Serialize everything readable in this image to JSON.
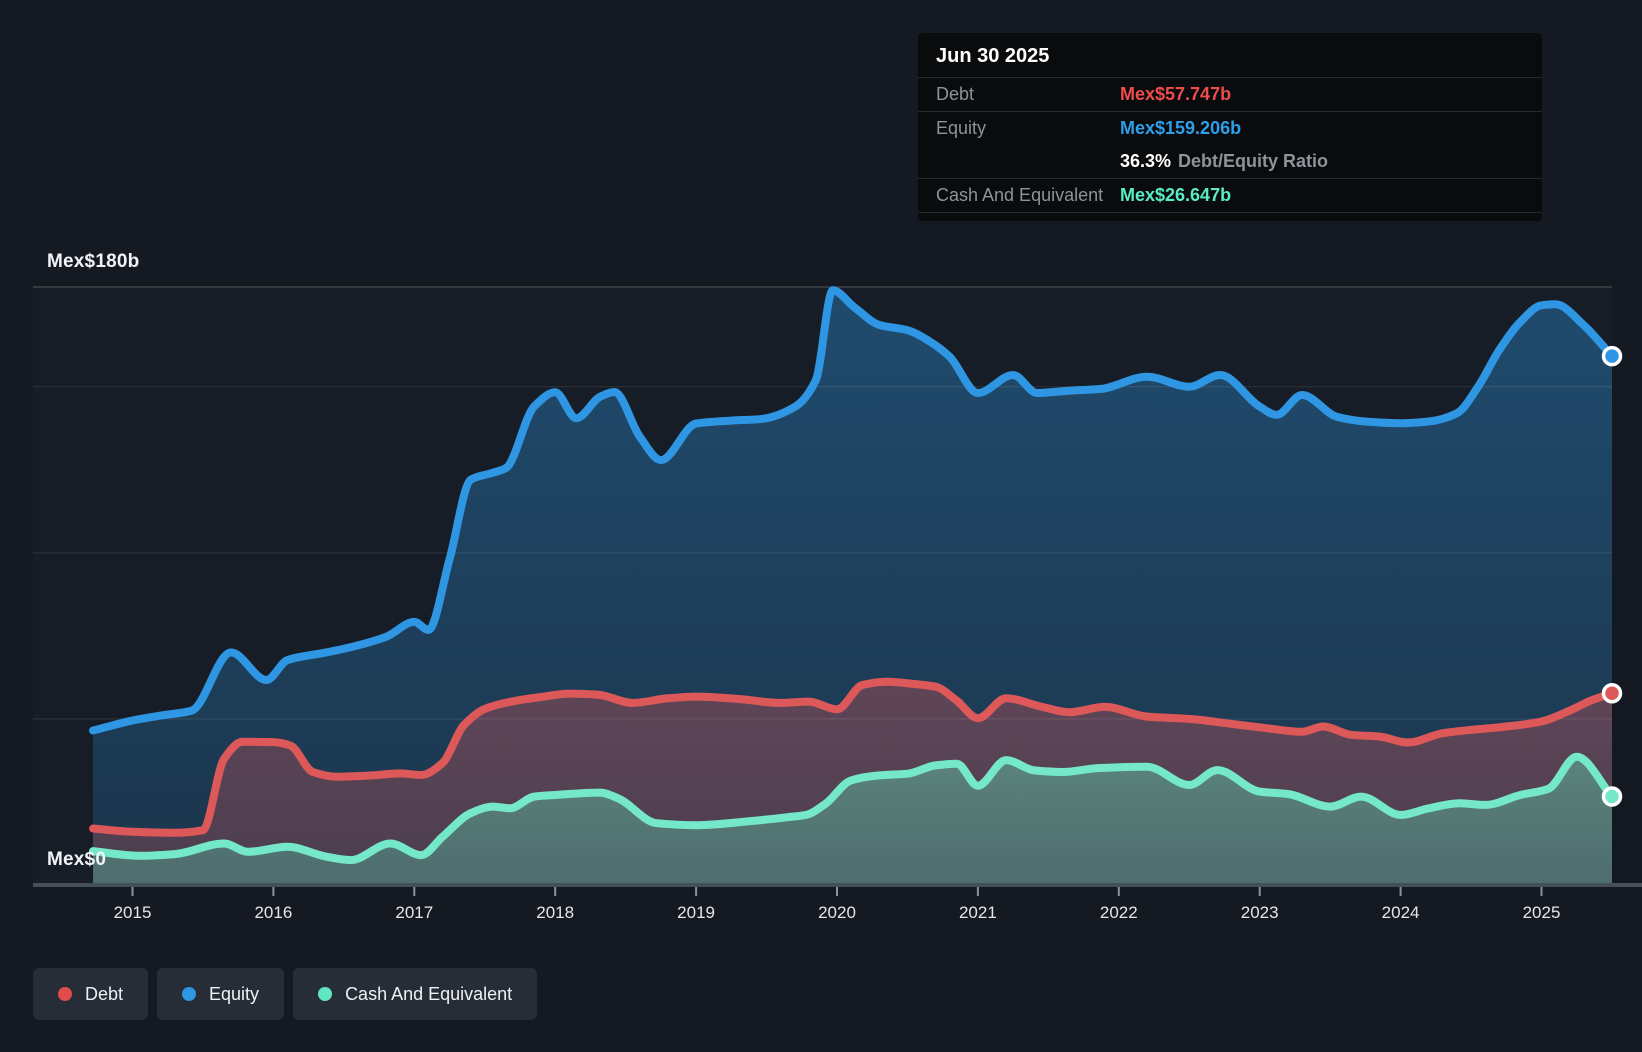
{
  "y_axis": {
    "top_label": "Mex$180b",
    "zero_label": "Mex$0"
  },
  "tooltip": {
    "date": "Jun 30 2025",
    "debt_label": "Debt",
    "debt_value": "Mex$57.747b",
    "debt_value_color": "#ef4c4c",
    "equity_label": "Equity",
    "equity_value": "Mex$159.206b",
    "equity_value_color": "#2e9fe8",
    "ratio_value": "36.3%",
    "ratio_label": "Debt/Equity Ratio",
    "cash_label": "Cash And Equivalent",
    "cash_value": "Mex$26.647b",
    "cash_value_color": "#5aedc5"
  },
  "legend": {
    "items": [
      {
        "label": "Debt",
        "color": "#e24c4c"
      },
      {
        "label": "Equity",
        "color": "#2e96e2"
      },
      {
        "label": "Cash And Equivalent",
        "color": "#62e6c1"
      }
    ]
  },
  "chart_data": {
    "type": "area",
    "title": "Debt to Equity history",
    "xlabel": "",
    "ylabel": "",
    "ylim": [
      0,
      180
    ],
    "xlim": [
      2014.7,
      2025.55
    ],
    "grid": true,
    "legend_position": "bottom-left",
    "x_ticks": [
      2015,
      2016,
      2017,
      2018,
      2019,
      2020,
      2021,
      2022,
      2023,
      2024,
      2025
    ],
    "gridline_values": [
      0,
      50,
      100,
      150,
      180
    ],
    "y_unit": "Mex$ billions",
    "series": [
      {
        "id": "equity",
        "name": "Equity",
        "color": "#2e96e2",
        "fill_top": "rgba(46,150,226,0.38)",
        "fill_bottom": "rgba(46,150,226,0.20)",
        "end_value": 159.206,
        "points": [
          [
            2014.72,
            46.5
          ],
          [
            2015.0,
            49.5
          ],
          [
            2015.2,
            51.0
          ],
          [
            2015.42,
            52.5
          ],
          [
            2015.7,
            70.0
          ],
          [
            2015.95,
            61.7
          ],
          [
            2016.1,
            67.7
          ],
          [
            2016.35,
            69.8
          ],
          [
            2016.55,
            71.6
          ],
          [
            2016.8,
            74.7
          ],
          [
            2017.0,
            79.2
          ],
          [
            2017.1,
            76.8
          ],
          [
            2017.25,
            98.0
          ],
          [
            2017.4,
            122.0
          ],
          [
            2017.55,
            124.0
          ],
          [
            2017.65,
            125.5
          ],
          [
            2017.85,
            144.0
          ],
          [
            2018.0,
            148.3
          ],
          [
            2018.15,
            140.5
          ],
          [
            2018.32,
            147.0
          ],
          [
            2018.42,
            148.4
          ],
          [
            2018.6,
            135.0
          ],
          [
            2018.75,
            127.9
          ],
          [
            2019.0,
            138.9
          ],
          [
            2019.25,
            139.8
          ],
          [
            2019.45,
            140.2
          ],
          [
            2019.7,
            143.9
          ],
          [
            2019.85,
            152.0
          ],
          [
            2019.97,
            179.0
          ],
          [
            2020.12,
            174.0
          ],
          [
            2020.3,
            168.6
          ],
          [
            2020.5,
            167.0
          ],
          [
            2020.68,
            163.0
          ],
          [
            2020.8,
            159.0
          ],
          [
            2021.0,
            148.1
          ],
          [
            2021.25,
            153.5
          ],
          [
            2021.42,
            148.1
          ],
          [
            2021.65,
            148.8
          ],
          [
            2021.87,
            149.3
          ],
          [
            2022.2,
            153.0
          ],
          [
            2022.5,
            150.0
          ],
          [
            2022.72,
            153.5
          ],
          [
            2023.0,
            144.0
          ],
          [
            2023.12,
            141.5
          ],
          [
            2023.3,
            147.5
          ],
          [
            2023.55,
            140.9
          ],
          [
            2023.75,
            139.5
          ],
          [
            2024.0,
            139.0
          ],
          [
            2024.2,
            139.5
          ],
          [
            2024.4,
            142.0
          ],
          [
            2024.55,
            150.0
          ],
          [
            2024.7,
            161.0
          ],
          [
            2024.85,
            169.5
          ],
          [
            2025.0,
            174.5
          ],
          [
            2025.1,
            174.8
          ],
          [
            2025.3,
            168.5
          ],
          [
            2025.5,
            159.206
          ]
        ]
      },
      {
        "id": "debt",
        "name": "Debt",
        "color": "#dd5858",
        "fill_top": "rgba(224,87,87,0.34)",
        "fill_bottom": "rgba(224,87,87,0.24)",
        "end_value": 57.747,
        "points": [
          [
            2014.72,
            17.0
          ],
          [
            2015.0,
            16.0
          ],
          [
            2015.3,
            15.7
          ],
          [
            2015.5,
            16.5
          ],
          [
            2015.65,
            38.0
          ],
          [
            2015.78,
            43.1
          ],
          [
            2016.0,
            43.0
          ],
          [
            2016.12,
            42.0
          ],
          [
            2016.28,
            34.0
          ],
          [
            2016.45,
            32.6
          ],
          [
            2016.7,
            33.0
          ],
          [
            2016.9,
            33.6
          ],
          [
            2017.05,
            33.1
          ],
          [
            2017.2,
            36.7
          ],
          [
            2017.35,
            48.0
          ],
          [
            2017.5,
            53.0
          ],
          [
            2017.7,
            55.3
          ],
          [
            2017.9,
            56.6
          ],
          [
            2018.1,
            57.6
          ],
          [
            2018.3,
            57.3
          ],
          [
            2018.55,
            54.8
          ],
          [
            2018.8,
            56.2
          ],
          [
            2019.0,
            56.7
          ],
          [
            2019.3,
            56.0
          ],
          [
            2019.6,
            54.8
          ],
          [
            2019.8,
            55.2
          ],
          [
            2020.0,
            52.9
          ],
          [
            2020.18,
            60.2
          ],
          [
            2020.35,
            61.2
          ],
          [
            2020.55,
            60.5
          ],
          [
            2020.7,
            59.7
          ],
          [
            2020.85,
            55.5
          ],
          [
            2021.0,
            50.2
          ],
          [
            2021.2,
            56.2
          ],
          [
            2021.45,
            53.7
          ],
          [
            2021.65,
            52.0
          ],
          [
            2021.9,
            53.6
          ],
          [
            2022.2,
            50.7
          ],
          [
            2022.5,
            50.0
          ],
          [
            2022.8,
            48.5
          ],
          [
            2023.05,
            47.2
          ],
          [
            2023.3,
            46.1
          ],
          [
            2023.45,
            47.7
          ],
          [
            2023.65,
            45.2
          ],
          [
            2023.85,
            44.7
          ],
          [
            2024.05,
            42.9
          ],
          [
            2024.3,
            45.7
          ],
          [
            2024.5,
            46.7
          ],
          [
            2024.75,
            47.7
          ],
          [
            2025.0,
            49.2
          ],
          [
            2025.2,
            52.5
          ],
          [
            2025.35,
            55.5
          ],
          [
            2025.5,
            57.747
          ]
        ]
      },
      {
        "id": "cash",
        "name": "Cash And Equivalent",
        "color": "#74e8c9",
        "fill_top": "rgba(94,190,160,0.52)",
        "fill_bottom": "rgba(80,160,145,0.48)",
        "end_value": 26.647,
        "points": [
          [
            2014.72,
            10.2
          ],
          [
            2015.05,
            8.8
          ],
          [
            2015.3,
            9.3
          ],
          [
            2015.65,
            12.5
          ],
          [
            2015.82,
            10.0
          ],
          [
            2016.1,
            11.5
          ],
          [
            2016.38,
            8.5
          ],
          [
            2016.55,
            7.5
          ],
          [
            2016.83,
            12.5
          ],
          [
            2017.05,
            9.0
          ],
          [
            2017.2,
            14.5
          ],
          [
            2017.4,
            21.6
          ],
          [
            2017.56,
            23.6
          ],
          [
            2017.68,
            23.1
          ],
          [
            2017.85,
            26.6
          ],
          [
            2018.0,
            27.1
          ],
          [
            2018.32,
            27.8
          ],
          [
            2018.45,
            26.0
          ],
          [
            2018.72,
            18.6
          ],
          [
            2019.0,
            18.0
          ],
          [
            2019.38,
            19.2
          ],
          [
            2019.65,
            20.4
          ],
          [
            2019.78,
            21.1
          ],
          [
            2019.92,
            24.5
          ],
          [
            2020.1,
            31.5
          ],
          [
            2020.3,
            33.0
          ],
          [
            2020.5,
            33.5
          ],
          [
            2020.7,
            36.0
          ],
          [
            2020.85,
            36.5
          ],
          [
            2021.0,
            29.9
          ],
          [
            2021.2,
            37.6
          ],
          [
            2021.4,
            34.5
          ],
          [
            2021.6,
            34.0
          ],
          [
            2021.85,
            35.2
          ],
          [
            2022.2,
            35.6
          ],
          [
            2022.5,
            30.1
          ],
          [
            2022.7,
            34.6
          ],
          [
            2023.0,
            28.1
          ],
          [
            2023.2,
            27.4
          ],
          [
            2023.5,
            23.6
          ],
          [
            2023.72,
            26.6
          ],
          [
            2024.0,
            21.1
          ],
          [
            2024.2,
            23.1
          ],
          [
            2024.42,
            24.6
          ],
          [
            2024.6,
            24.1
          ],
          [
            2024.85,
            27.1
          ],
          [
            2025.05,
            29.0
          ],
          [
            2025.25,
            38.6
          ],
          [
            2025.5,
            26.647
          ]
        ]
      }
    ]
  }
}
